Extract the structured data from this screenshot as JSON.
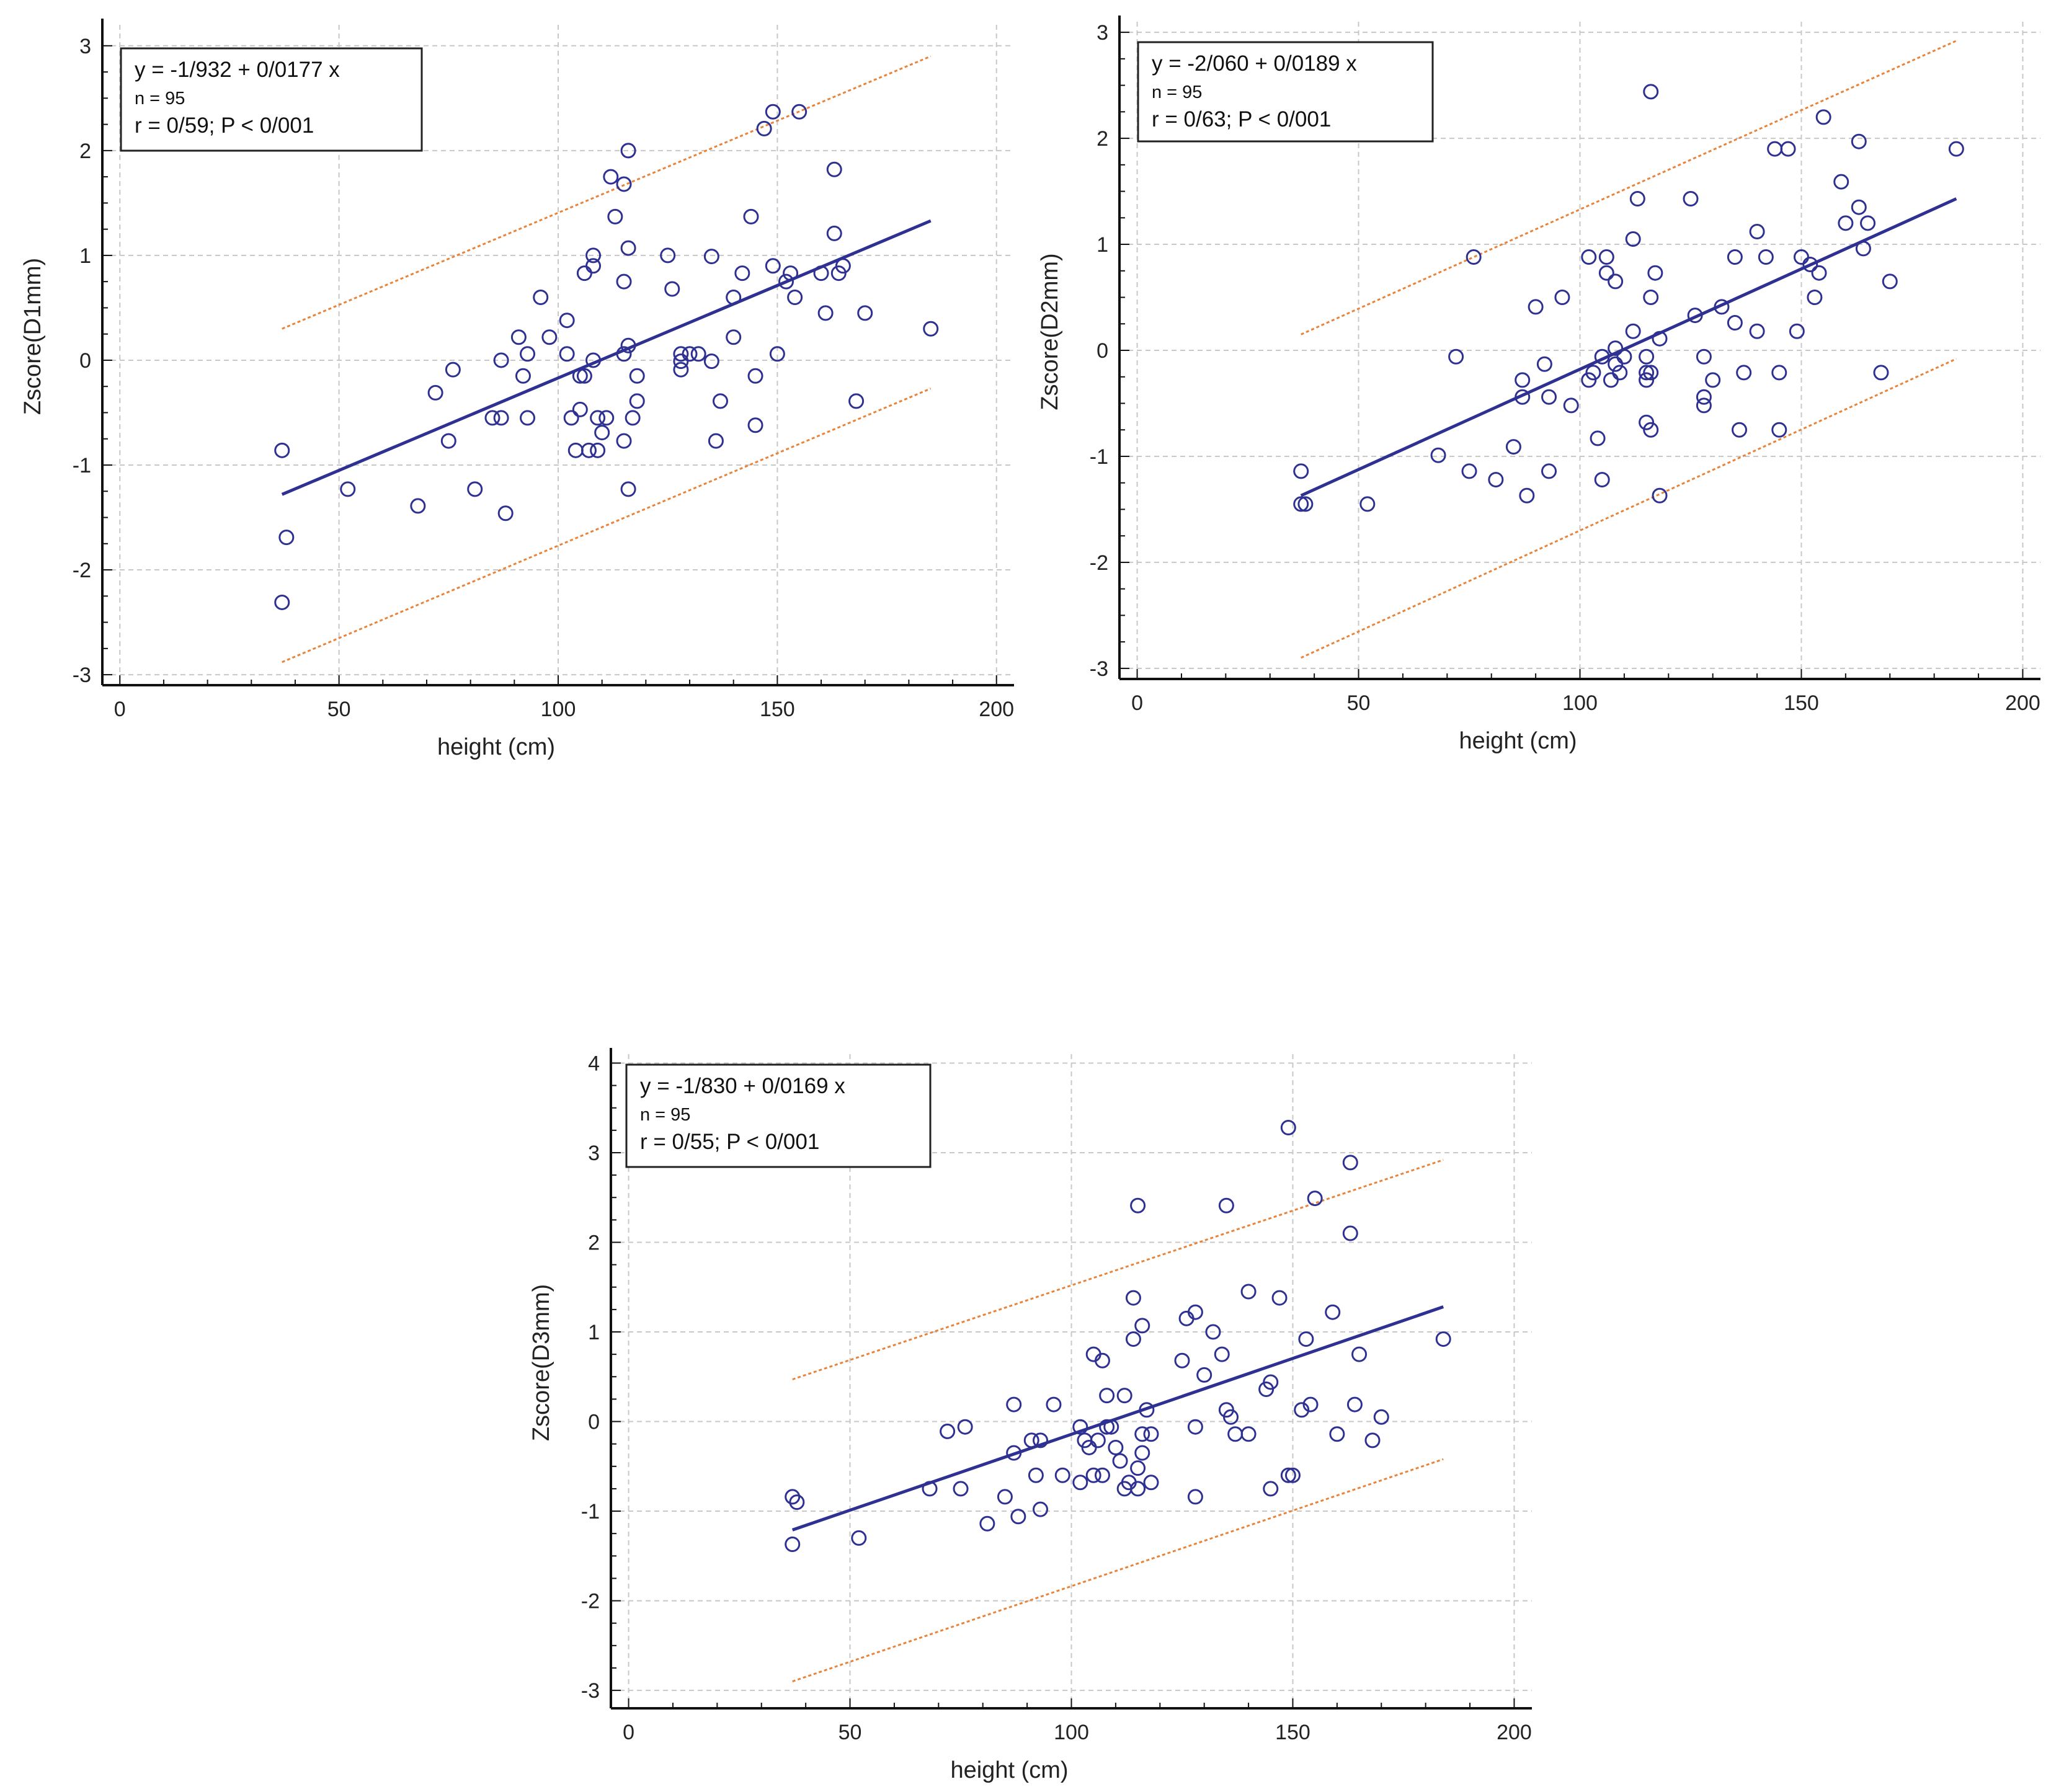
{
  "colors": {
    "regression_line": "#2e3192",
    "prediction_band": "#e8843a",
    "points": "#2e3192",
    "grid": "#c8c8c8",
    "axis": "#111111"
  },
  "chart_data": [
    {
      "type": "scatter",
      "xlabel": "height (cm)",
      "ylabel": "Zscore(D1mm)",
      "xlim": [
        -4,
        204
      ],
      "ylim": [
        -3.1,
        3.2
      ],
      "xticks": [
        0,
        50,
        100,
        150,
        200
      ],
      "yticks": [
        -3,
        -2,
        -1,
        0,
        1,
        2,
        3
      ],
      "grid": true,
      "legend_placement": "top-left",
      "legend": {
        "equation": "y = -1/932  +  0/0177  x",
        "n": "n = 95",
        "stats": "r = 0/59; P < 0/001"
      },
      "regression": {
        "x": [
          37,
          185
        ],
        "y": [
          -1.28,
          1.33
        ]
      },
      "band_upper": {
        "x": [
          37,
          185
        ],
        "y": [
          0.3,
          2.9
        ]
      },
      "band_lower": {
        "x": [
          37,
          185
        ],
        "y": [
          -2.88,
          -0.27
        ]
      },
      "points": [
        [
          37,
          -0.86
        ],
        [
          38,
          -1.69
        ],
        [
          37,
          -2.31
        ],
        [
          52,
          -1.23
        ],
        [
          68,
          -1.39
        ],
        [
          72,
          -0.31
        ],
        [
          75,
          -0.77
        ],
        [
          76,
          -0.09
        ],
        [
          81,
          -1.23
        ],
        [
          85,
          -0.55
        ],
        [
          87,
          -0.55
        ],
        [
          87,
          0.0
        ],
        [
          88,
          -1.46
        ],
        [
          91,
          0.22
        ],
        [
          92,
          -0.15
        ],
        [
          93,
          0.06
        ],
        [
          93,
          -0.55
        ],
        [
          96,
          0.6
        ],
        [
          98,
          0.22
        ],
        [
          102,
          0.38
        ],
        [
          102,
          0.06
        ],
        [
          103,
          -0.55
        ],
        [
          104,
          -0.86
        ],
        [
          105,
          -0.15
        ],
        [
          105,
          -0.47
        ],
        [
          106,
          0.83
        ],
        [
          106,
          -0.15
        ],
        [
          107,
          -0.86
        ],
        [
          108,
          0.9
        ],
        [
          108,
          1.0
        ],
        [
          108,
          0.0
        ],
        [
          109,
          -0.55
        ],
        [
          109,
          -0.86
        ],
        [
          110,
          -0.69
        ],
        [
          111,
          -0.55
        ],
        [
          112,
          1.75
        ],
        [
          113,
          1.37
        ],
        [
          115,
          1.68
        ],
        [
          115,
          0.06
        ],
        [
          115,
          0.75
        ],
        [
          115,
          -0.77
        ],
        [
          116,
          2.0
        ],
        [
          116,
          1.07
        ],
        [
          116,
          0.14
        ],
        [
          116,
          -1.23
        ],
        [
          117,
          -0.55
        ],
        [
          118,
          -0.39
        ],
        [
          118,
          -0.15
        ],
        [
          125,
          1.0
        ],
        [
          126,
          0.68
        ],
        [
          128,
          0.06
        ],
        [
          128,
          -0.01
        ],
        [
          128,
          -0.09
        ],
        [
          130,
          0.06
        ],
        [
          132,
          0.06
        ],
        [
          135,
          0.99
        ],
        [
          135,
          -0.01
        ],
        [
          136,
          -0.77
        ],
        [
          137,
          -0.39
        ],
        [
          140,
          0.6
        ],
        [
          140,
          0.22
        ],
        [
          142,
          0.83
        ],
        [
          144,
          1.37
        ],
        [
          145,
          -0.62
        ],
        [
          145,
          -0.15
        ],
        [
          147,
          2.21
        ],
        [
          149,
          2.37
        ],
        [
          149,
          0.9
        ],
        [
          150,
          0.06
        ],
        [
          152,
          0.75
        ],
        [
          153,
          0.83
        ],
        [
          154,
          0.6
        ],
        [
          155,
          2.37
        ],
        [
          160,
          0.83
        ],
        [
          161,
          0.45
        ],
        [
          163,
          1.82
        ],
        [
          163,
          1.21
        ],
        [
          164,
          0.83
        ],
        [
          165,
          0.9
        ],
        [
          168,
          -0.39
        ],
        [
          170,
          0.45
        ],
        [
          185,
          0.3
        ]
      ]
    },
    {
      "type": "scatter",
      "xlabel": "height (cm)",
      "ylabel": "Zscore(D2mm)",
      "xlim": [
        -4,
        204
      ],
      "ylim": [
        -3.1,
        3.1
      ],
      "xticks": [
        0,
        50,
        100,
        150,
        200
      ],
      "yticks": [
        -3,
        -2,
        -1,
        0,
        1,
        2,
        3
      ],
      "grid": true,
      "legend_placement": "top-left",
      "legend": {
        "equation": "y = -2/060  +  0/0189  x",
        "n": "n = 95",
        "stats": "r = 0/63; P < 0/001"
      },
      "regression": {
        "x": [
          37,
          185
        ],
        "y": [
          -1.37,
          1.43
        ]
      },
      "band_upper": {
        "x": [
          37,
          185
        ],
        "y": [
          0.15,
          2.92
        ]
      },
      "band_lower": {
        "x": [
          37,
          185
        ],
        "y": [
          -2.9,
          -0.08
        ]
      },
      "points": [
        [
          37,
          -1.14
        ],
        [
          37,
          -1.45
        ],
        [
          38,
          -1.45
        ],
        [
          52,
          -1.45
        ],
        [
          68,
          -0.99
        ],
        [
          72,
          -0.06
        ],
        [
          75,
          -1.14
        ],
        [
          76,
          0.88
        ],
        [
          81,
          -1.22
        ],
        [
          85,
          -0.91
        ],
        [
          87,
          -0.28
        ],
        [
          87,
          -0.44
        ],
        [
          88,
          -1.37
        ],
        [
          90,
          0.41
        ],
        [
          92,
          -0.13
        ],
        [
          93,
          -0.44
        ],
        [
          93,
          -1.14
        ],
        [
          96,
          0.5
        ],
        [
          98,
          -0.52
        ],
        [
          102,
          0.88
        ],
        [
          102,
          -0.28
        ],
        [
          103,
          -0.21
        ],
        [
          104,
          -0.83
        ],
        [
          105,
          -0.06
        ],
        [
          105,
          -1.22
        ],
        [
          106,
          0.88
        ],
        [
          106,
          0.73
        ],
        [
          107,
          -0.28
        ],
        [
          108,
          0.65
        ],
        [
          108,
          0.02
        ],
        [
          108,
          -0.13
        ],
        [
          109,
          -0.21
        ],
        [
          110,
          -0.06
        ],
        [
          112,
          1.05
        ],
        [
          112,
          0.18
        ],
        [
          113,
          1.43
        ],
        [
          115,
          -0.06
        ],
        [
          115,
          -0.21
        ],
        [
          115,
          -0.28
        ],
        [
          115,
          -0.68
        ],
        [
          116,
          2.44
        ],
        [
          116,
          0.5
        ],
        [
          116,
          -0.21
        ],
        [
          116,
          -0.75
        ],
        [
          117,
          0.73
        ],
        [
          118,
          0.11
        ],
        [
          118,
          -1.37
        ],
        [
          125,
          1.43
        ],
        [
          126,
          0.33
        ],
        [
          128,
          -0.06
        ],
        [
          128,
          -0.44
        ],
        [
          128,
          -0.52
        ],
        [
          130,
          -0.28
        ],
        [
          132,
          0.41
        ],
        [
          135,
          0.88
        ],
        [
          135,
          0.26
        ],
        [
          136,
          -0.75
        ],
        [
          137,
          -0.21
        ],
        [
          140,
          1.12
        ],
        [
          140,
          0.18
        ],
        [
          142,
          0.88
        ],
        [
          144,
          1.9
        ],
        [
          145,
          -0.21
        ],
        [
          145,
          -0.75
        ],
        [
          147,
          1.9
        ],
        [
          149,
          0.18
        ],
        [
          150,
          0.88
        ],
        [
          152,
          0.81
        ],
        [
          153,
          0.5
        ],
        [
          154,
          0.73
        ],
        [
          155,
          2.2
        ],
        [
          159,
          1.59
        ],
        [
          160,
          1.2
        ],
        [
          163,
          1.97
        ],
        [
          163,
          1.35
        ],
        [
          164,
          0.96
        ],
        [
          165,
          1.2
        ],
        [
          168,
          -0.21
        ],
        [
          170,
          0.65
        ],
        [
          185,
          1.9
        ]
      ]
    },
    {
      "type": "scatter",
      "xlabel": "height (cm)",
      "ylabel": "Zscore(D3mm)",
      "xlim": [
        -4,
        204
      ],
      "ylim": [
        -3.2,
        4.1
      ],
      "xticks": [
        0,
        50,
        100,
        150,
        200
      ],
      "yticks": [
        -3,
        -2,
        -1,
        0,
        1,
        2,
        3,
        4
      ],
      "grid": true,
      "legend_placement": "top-left",
      "legend": {
        "equation": "y = -1/830  +  0/0169  x",
        "n": "n = 95",
        "stats": "r = 0/55; P < 0/001"
      },
      "regression": {
        "x": [
          37,
          184
        ],
        "y": [
          -1.21,
          1.28
        ]
      },
      "band_upper": {
        "x": [
          37,
          184
        ],
        "y": [
          0.47,
          2.92
        ]
      },
      "band_lower": {
        "x": [
          37,
          184
        ],
        "y": [
          -2.9,
          -0.42
        ]
      },
      "points": [
        [
          37,
          -0.84
        ],
        [
          38,
          -0.9
        ],
        [
          37,
          -1.37
        ],
        [
          52,
          -1.3
        ],
        [
          68,
          -0.75
        ],
        [
          72,
          -0.11
        ],
        [
          75,
          -0.75
        ],
        [
          76,
          -0.06
        ],
        [
          81,
          -1.14
        ],
        [
          85,
          -0.84
        ],
        [
          87,
          0.19
        ],
        [
          87,
          -0.35
        ],
        [
          88,
          -1.06
        ],
        [
          91,
          -0.21
        ],
        [
          92,
          -0.6
        ],
        [
          93,
          -0.21
        ],
        [
          93,
          -0.98
        ],
        [
          96,
          0.19
        ],
        [
          98,
          -0.6
        ],
        [
          102,
          -0.06
        ],
        [
          102,
          -0.68
        ],
        [
          103,
          -0.21
        ],
        [
          104,
          -0.29
        ],
        [
          105,
          0.75
        ],
        [
          105,
          -0.6
        ],
        [
          106,
          -0.21
        ],
        [
          107,
          0.68
        ],
        [
          107,
          -0.6
        ],
        [
          108,
          0.29
        ],
        [
          108,
          -0.06
        ],
        [
          109,
          -0.06
        ],
        [
          110,
          -0.29
        ],
        [
          111,
          -0.44
        ],
        [
          112,
          0.29
        ],
        [
          112,
          -0.75
        ],
        [
          113,
          -0.68
        ],
        [
          114,
          0.92
        ],
        [
          114,
          1.38
        ],
        [
          115,
          -0.52
        ],
        [
          115,
          -0.75
        ],
        [
          115,
          2.41
        ],
        [
          116,
          1.07
        ],
        [
          116,
          -0.14
        ],
        [
          116,
          -0.35
        ],
        [
          117,
          0.13
        ],
        [
          118,
          -0.14
        ],
        [
          118,
          -0.68
        ],
        [
          125,
          0.68
        ],
        [
          126,
          1.15
        ],
        [
          128,
          1.22
        ],
        [
          128,
          -0.06
        ],
        [
          128,
          -0.84
        ],
        [
          130,
          0.52
        ],
        [
          132,
          1.0
        ],
        [
          134,
          0.75
        ],
        [
          135,
          0.13
        ],
        [
          135,
          2.41
        ],
        [
          136,
          0.05
        ],
        [
          137,
          -0.14
        ],
        [
          140,
          1.45
        ],
        [
          140,
          -0.14
        ],
        [
          144,
          0.36
        ],
        [
          145,
          0.44
        ],
        [
          145,
          -0.75
        ],
        [
          147,
          1.38
        ],
        [
          149,
          3.28
        ],
        [
          149,
          -0.6
        ],
        [
          150,
          -0.6
        ],
        [
          152,
          0.13
        ],
        [
          153,
          0.92
        ],
        [
          154,
          0.19
        ],
        [
          155,
          2.49
        ],
        [
          159,
          1.22
        ],
        [
          160,
          -0.14
        ],
        [
          163,
          2.89
        ],
        [
          163,
          2.1
        ],
        [
          164,
          0.19
        ],
        [
          165,
          0.75
        ],
        [
          168,
          -0.21
        ],
        [
          170,
          0.05
        ],
        [
          184,
          0.92
        ]
      ]
    }
  ]
}
